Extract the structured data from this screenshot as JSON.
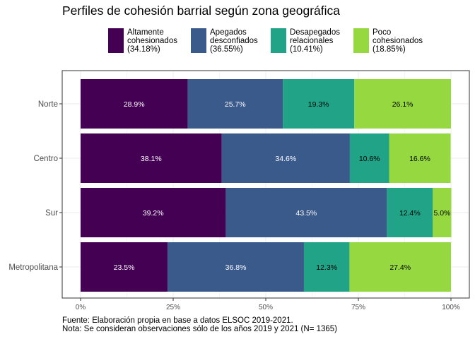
{
  "chart_data": {
    "type": "bar",
    "orientation": "horizontal",
    "stacked": true,
    "title": "Perfiles de cohesión barrial según zona geográfica",
    "categories": [
      "Norte",
      "Centro",
      "Sur",
      "Metropolitana"
    ],
    "series": [
      {
        "name": "Altamente cohesionados (34.18%)",
        "color": "#440154",
        "label_color": "#ffffff",
        "values": [
          28.9,
          38.1,
          39.2,
          23.5
        ],
        "labels": [
          "28.9%",
          "38.1%",
          "39.2%",
          "23.5%"
        ]
      },
      {
        "name": "Apegados desconfiados (36.55%)",
        "color": "#3b5a8c",
        "label_color": "#ffffff",
        "values": [
          25.7,
          34.6,
          43.5,
          36.8
        ],
        "labels": [
          "25.7%",
          "34.6%",
          "43.5%",
          "36.8%"
        ]
      },
      {
        "name": "Desapegados relacionales (10.41%)",
        "color": "#20a386",
        "label_color": "#000000",
        "values": [
          19.3,
          10.6,
          12.4,
          12.3
        ],
        "labels": [
          "19.3%",
          "10.6%",
          "12.4%",
          "12.3%"
        ]
      },
      {
        "name": "Poco cohesionados (18.85%)",
        "color": "#95d840",
        "label_color": "#000000",
        "values": [
          26.1,
          16.6,
          5.0,
          27.4
        ],
        "labels": [
          "26.1%",
          "16.6%",
          "5.0%",
          "27.4%"
        ]
      }
    ],
    "xlim": [
      0,
      100
    ],
    "x_ticks": [
      0,
      25,
      50,
      75,
      100
    ],
    "x_tick_labels": [
      "0%",
      "25%",
      "50%",
      "75%",
      "100%"
    ],
    "xlabel": "",
    "ylabel": "",
    "grid": true,
    "legend_position": "top",
    "legend": [
      {
        "lines": [
          "Altamente",
          "cohesionados",
          "(34.18%)"
        ]
      },
      {
        "lines": [
          "Apegados",
          "desconfiados",
          "(36.55%)"
        ]
      },
      {
        "lines": [
          "Desapegados",
          "relacionales",
          "(10.41%)"
        ]
      },
      {
        "lines": [
          "Poco",
          "cohesionados",
          "(18.85%)"
        ]
      }
    ]
  },
  "caption": {
    "source": "Fuente: Elaboración propia en base a datos ELSOC 2019-2021.",
    "note": "Nota: Se consideran observaciones sólo de los años 2019 y 2021 (N= 1365)"
  }
}
